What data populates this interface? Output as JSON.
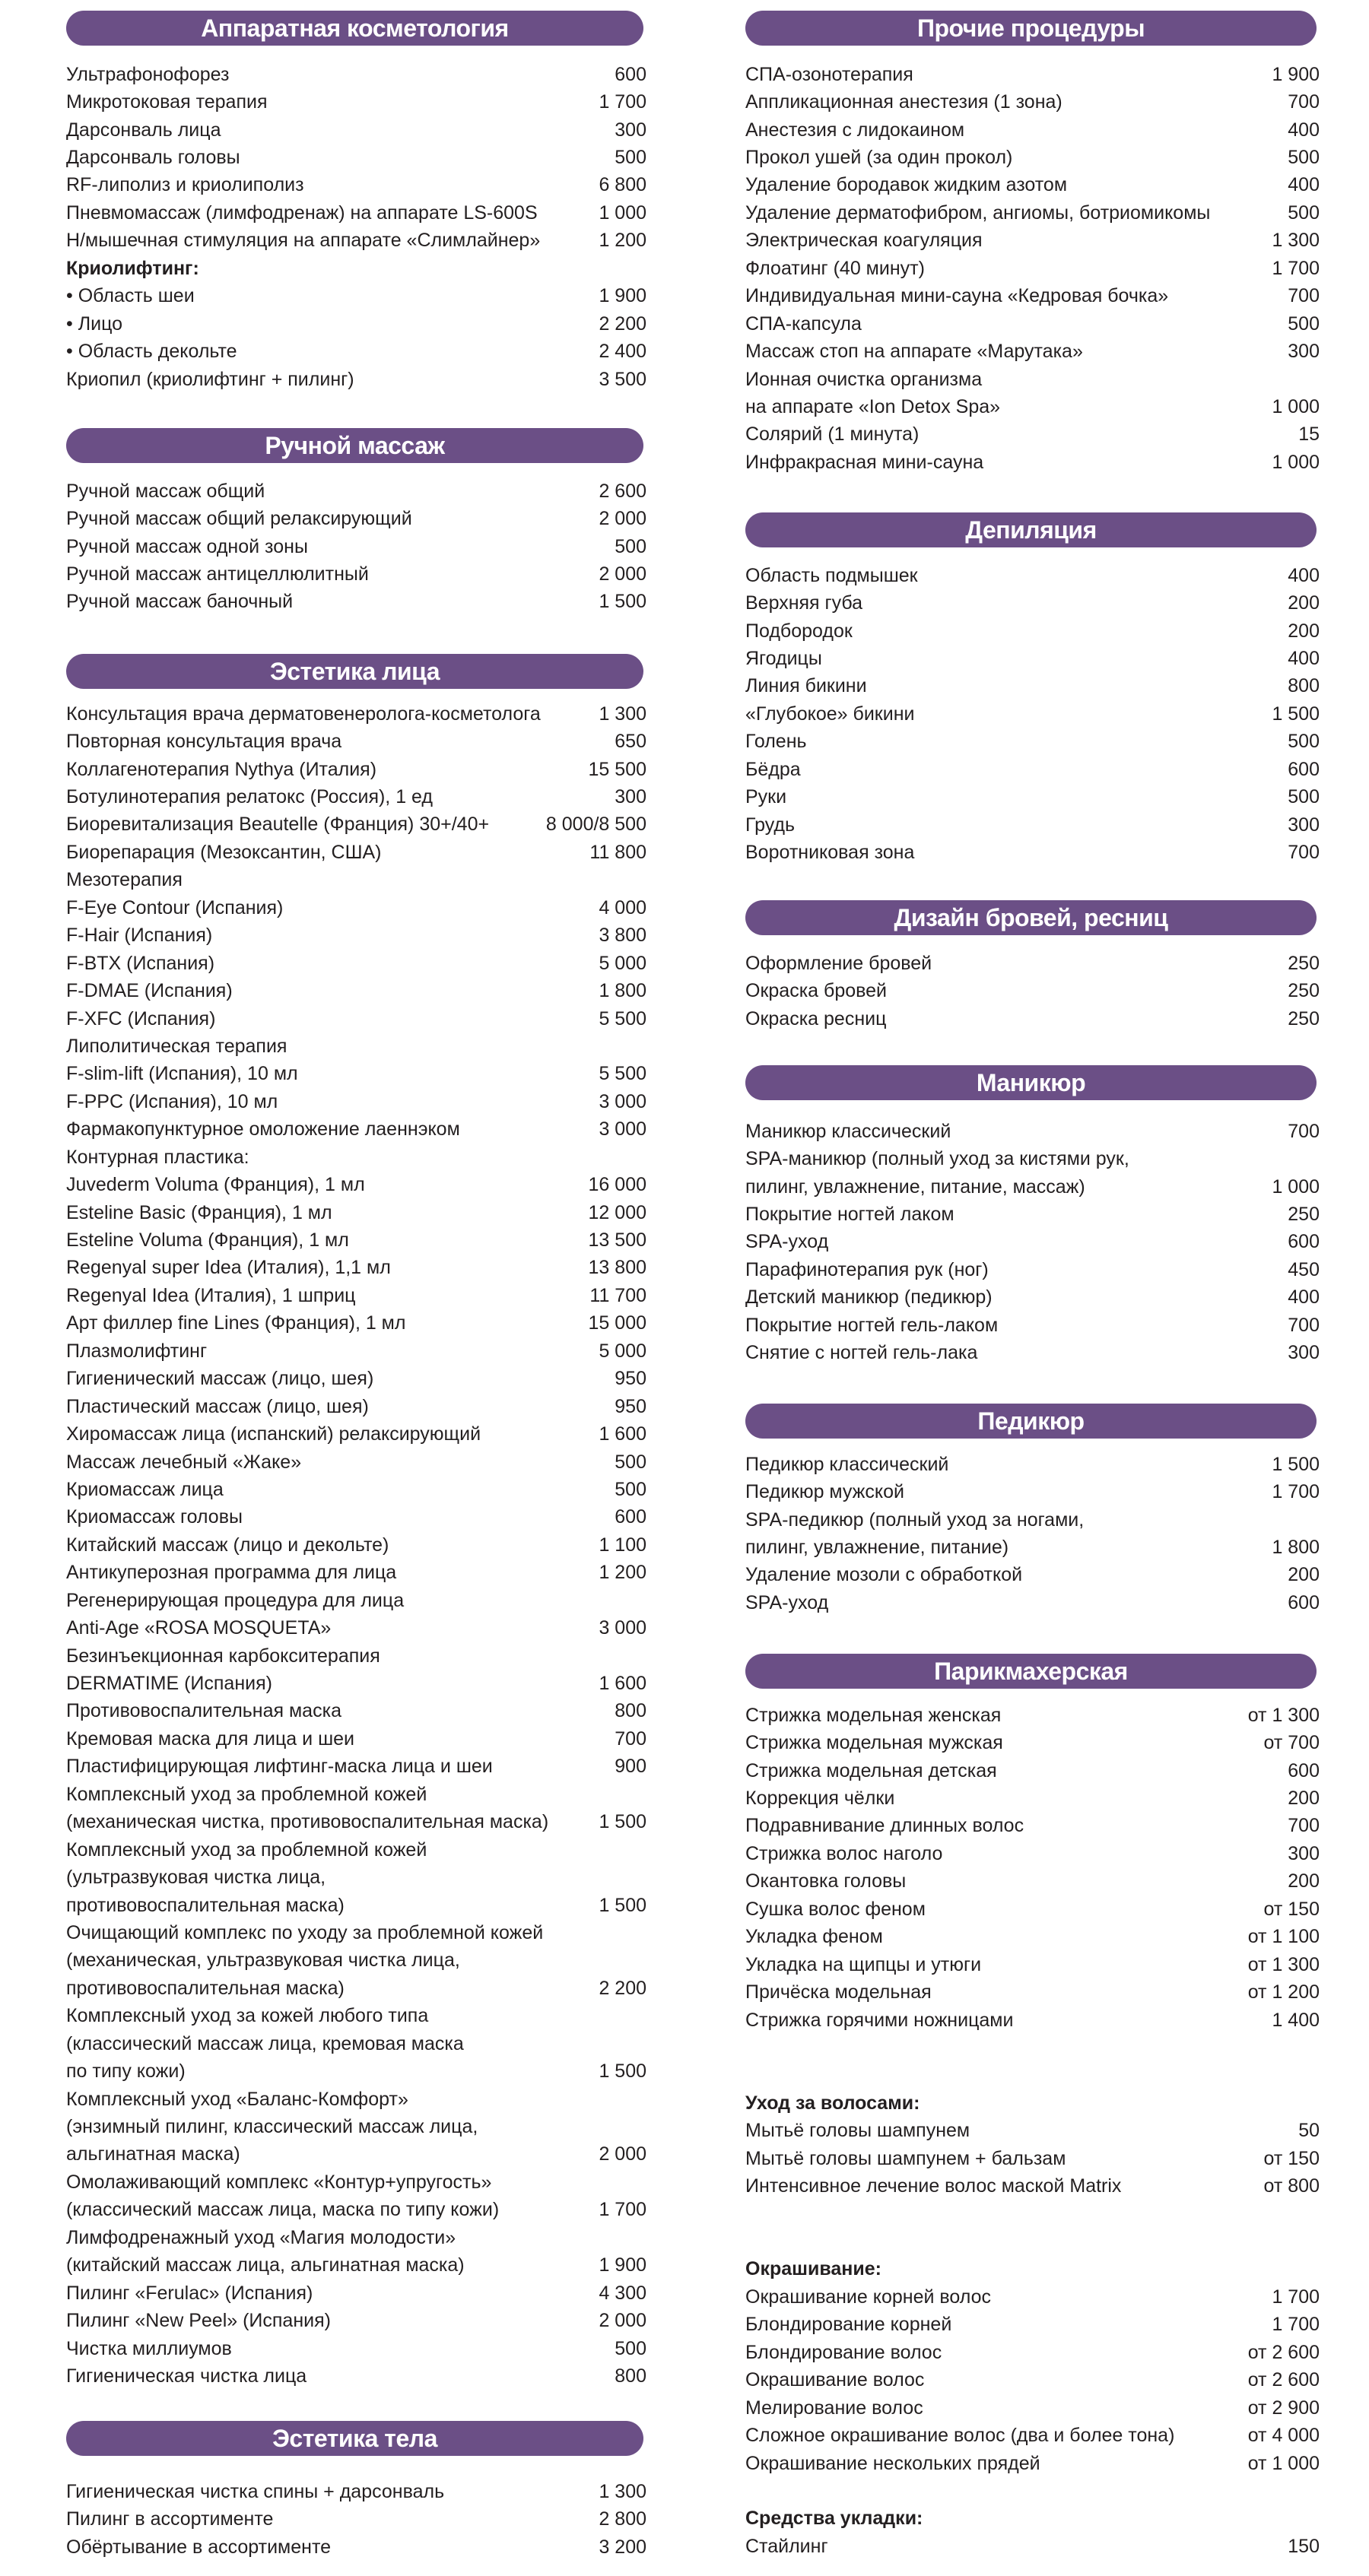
{
  "colors": {
    "header_bg": "#6b4f86",
    "header_text": "#ffffff",
    "text": "#231f20"
  },
  "sections": [
    {
      "id": "apparatus",
      "title": "Аппаратная косметология",
      "rows": [
        [
          "Ультрафонофорез",
          "600"
        ],
        [
          "Микротоковая терапия",
          "1 700"
        ],
        [
          "Дарсонваль лица",
          "300"
        ],
        [
          "Дарсонваль головы",
          "500"
        ],
        [
          "RF-липолиз и криолиполиз",
          "6 800"
        ],
        [
          "Пневмомассаж (лимфодренаж) на аппарате LS-600S",
          "1 000"
        ],
        [
          "Н/мышечная стимуляция на аппарате «Слимлайнер»",
          "1 200"
        ],
        [
          "Криолифтинг:",
          "",
          true
        ],
        [
          "• Область шеи",
          "1 900"
        ],
        [
          "• Лицо",
          "2 200"
        ],
        [
          "• Область декольте",
          "2 400"
        ],
        [
          "Криопил (криолифтинг + пилинг)",
          "3 500"
        ]
      ]
    },
    {
      "id": "manual-massage",
      "title": "Ручной массаж",
      "rows": [
        [
          "Ручной массаж общий",
          "2 600"
        ],
        [
          "Ручной массаж общий релаксирующий",
          "2 000"
        ],
        [
          "Ручной массаж одной зоны",
          "500"
        ],
        [
          "Ручной массаж антицеллюлитный",
          "2 000"
        ],
        [
          "Ручной массаж баночный",
          "1 500"
        ]
      ]
    },
    {
      "id": "face",
      "title": "Эстетика лица",
      "rows": [
        [
          "Консультация врача дерматовенеролога-косметолога",
          "1 300"
        ],
        [
          "Повторная консультация врача",
          "650"
        ],
        [
          "Коллагенотерапия Nythya (Италия)",
          "15 500"
        ],
        [
          "Ботулинотерапия релатокс (Россия), 1 ед",
          "300"
        ],
        [
          "Биоревитализация Beautelle (Франция) 30+/40+",
          "8 000/8 500"
        ],
        [
          "Биорепарация (Мезоксантин, США)",
          "11 800"
        ],
        [
          "Мезотерапия",
          ""
        ],
        [
          "F-Eye Contour (Испания)",
          "4 000"
        ],
        [
          "F-Hair (Испания)",
          "3 800"
        ],
        [
          "F-BTX (Испания)",
          "5 000"
        ],
        [
          "F-DMAE (Испания)",
          "1 800"
        ],
        [
          "F-XFC (Испания)",
          "5 500"
        ],
        [
          "Липолитическая терапия",
          ""
        ],
        [
          "F-slim-lift (Испания), 10 мл",
          "5 500"
        ],
        [
          "F-PPC (Испания), 10 мл",
          "3 000"
        ],
        [
          "Фармакопунктурное омоложение лаеннэком",
          "3 000"
        ],
        [
          "Контурная пластика:",
          ""
        ],
        [
          "Juvederm Voluma (Франция), 1 мл",
          "16 000"
        ],
        [
          "Esteline Basic (Франция), 1 мл",
          "12 000"
        ],
        [
          "Esteline Voluma (Франция), 1 мл",
          "13 500"
        ],
        [
          "Regenyal super Idea (Италия), 1,1 мл",
          "13 800"
        ],
        [
          "Regenyal Idea (Италия), 1 шприц",
          "11 700"
        ],
        [
          "Арт филлер fine Lines (Франция), 1 мл",
          "15 000"
        ],
        [
          "Плазмолифтинг",
          "5 000"
        ],
        [
          "Гигиенический массаж (лицо, шея)",
          "950"
        ],
        [
          "Пластический массаж (лицо, шея)",
          "950"
        ],
        [
          "Хиромассаж лица (испанский) релаксирующий",
          "1 600"
        ],
        [
          "Массаж лечебный «Жаке»",
          "500"
        ],
        [
          "Криомассаж лица",
          "500"
        ],
        [
          "Криомассаж головы",
          "600"
        ],
        [
          "Китайский массаж (лицо и декольте)",
          "1 100"
        ],
        [
          "Антикуперозная программа для лица",
          "1 200"
        ],
        [
          "Регенерирующая процедура для лица",
          ""
        ],
        [
          "Anti-Age «ROSA MOSQUETA»",
          "3 000"
        ],
        [
          "Безинъекционная карбокситерапия",
          ""
        ],
        [
          "DERMATIME (Испания)",
          "1 600"
        ],
        [
          "Противовоспалительная маска",
          "800"
        ],
        [
          "Кремовая маска для лица и шеи",
          "700"
        ],
        [
          "Пластифицирующая лифтинг-маска лица и шеи",
          "900"
        ],
        [
          "Комплексный уход за проблемной кожей",
          ""
        ],
        [
          "(механическая чистка, противовоспалительная маска)",
          "1 500"
        ],
        [
          "Комплексный уход за проблемной кожей",
          ""
        ],
        [
          "(ультразвуковая чистка лица,",
          ""
        ],
        [
          "противовоспалительная маска)",
          "1 500"
        ],
        [
          "Очищающий комплекс по уходу за проблемной кожей",
          ""
        ],
        [
          "(механическая, ультразвуковая чистка лица,",
          ""
        ],
        [
          "противовоспалительная маска)",
          "2 200"
        ],
        [
          "Комплексный уход за кожей любого типа",
          ""
        ],
        [
          "(классический массаж лица, кремовая маска",
          ""
        ],
        [
          "по типу кожи)",
          "1 500"
        ],
        [
          "Комплексный уход «Баланс-Комфорт»",
          ""
        ],
        [
          "(энзимный пилинг, классический массаж лица,",
          ""
        ],
        [
          "альгинатная маска)",
          "2 000"
        ],
        [
          "Омолаживающий комплекс «Контур+упругость»",
          ""
        ],
        [
          "(классический массаж лица, маска по типу кожи)",
          "1 700"
        ],
        [
          "Лимфодренажный уход «Магия молодости»",
          ""
        ],
        [
          "(китайский массаж лица, альгинатная маска)",
          "1 900"
        ],
        [
          "Пилинг «Ferulac» (Испания)",
          "4 300"
        ],
        [
          "Пилинг «New Peel» (Испания)",
          "2 000"
        ],
        [
          "Чистка миллиумов",
          "500"
        ],
        [
          "Гигиеническая чистка лица",
          "800"
        ]
      ]
    },
    {
      "id": "body",
      "title": "Эстетика тела",
      "rows": [
        [
          "Гигиеническая чистка спины + дарсонваль",
          "1 300"
        ],
        [
          "Пилинг в ассортименте",
          "2 800"
        ],
        [
          "Обёртывание в ассортименте",
          "3 200"
        ]
      ]
    },
    {
      "id": "other",
      "title": "Прочие процедуры",
      "rows": [
        [
          "СПА-озонотерапия",
          "1 900"
        ],
        [
          "Аппликационная анестезия (1 зона)",
          "700"
        ],
        [
          "Анестезия с лидокаином",
          "400"
        ],
        [
          "Прокол ушей (за один прокол)",
          "500"
        ],
        [
          "Удаление бородавок жидким азотом",
          "400"
        ],
        [
          "Удаление дерматофибром, ангиомы, ботриомикомы",
          "500"
        ],
        [
          "Электрическая коагуляция",
          "1 300"
        ],
        [
          "Флоатинг (40 минут)",
          "1 700"
        ],
        [
          "Индивидуальная мини-сауна «Кедровая бочка»",
          "700"
        ],
        [
          "СПА-капсула",
          "500"
        ],
        [
          "Массаж стоп на аппарате «Марутака»",
          "300"
        ],
        [
          "Ионная очистка организма",
          ""
        ],
        [
          "на аппарате «Ion Detox Spa»",
          "1 000"
        ],
        [
          "Солярий (1 минута)",
          "15"
        ],
        [
          "Инфракрасная мини-сауна",
          "1 000"
        ]
      ]
    },
    {
      "id": "depilation",
      "title": "Депиляция",
      "rows": [
        [
          "Область подмышек",
          "400"
        ],
        [
          "Верхняя губа",
          "200"
        ],
        [
          "Подбородок",
          "200"
        ],
        [
          "Ягодицы",
          "400"
        ],
        [
          "Линия бикини",
          "800"
        ],
        [
          "«Глубокое» бикини",
          "1 500"
        ],
        [
          "Голень",
          "500"
        ],
        [
          "Бёдра",
          "600"
        ],
        [
          "Руки",
          "500"
        ],
        [
          "Грудь",
          "300"
        ],
        [
          "Воротниковая зона",
          "700"
        ]
      ]
    },
    {
      "id": "brows",
      "title": "Дизайн бровей, ресниц",
      "rows": [
        [
          "Оформление бровей",
          "250"
        ],
        [
          "Окраска бровей",
          "250"
        ],
        [
          "Окраска ресниц",
          "250"
        ]
      ]
    },
    {
      "id": "manicure",
      "title": "Маникюр",
      "rows": [
        [
          "Маникюр классический",
          "700"
        ],
        [
          "SPA-маникюр (полный уход за кистями рук,",
          ""
        ],
        [
          "пилинг, увлажнение, питание, массаж)",
          "1 000"
        ],
        [
          "Покрытие ногтей лаком",
          "250"
        ],
        [
          "SPA-уход",
          "600"
        ],
        [
          "Парафинотерапия рук (ног)",
          "450"
        ],
        [
          "Детский маникюр (педикюр)",
          "400"
        ],
        [
          "Покрытие ногтей гель-лаком",
          "700"
        ],
        [
          "Снятие с ногтей гель-лака",
          "300"
        ]
      ]
    },
    {
      "id": "pedicure",
      "title": "Педикюр",
      "rows": [
        [
          "Педикюр классический",
          "1 500"
        ],
        [
          "Педикюр мужской",
          "1 700"
        ],
        [
          "SPA-педикюр (полный уход за ногами,",
          ""
        ],
        [
          "пилинг, увлажнение, питание)",
          "1 800"
        ],
        [
          "Удаление мозоли с обработкой",
          "200"
        ],
        [
          "SPA-уход",
          "600"
        ]
      ]
    },
    {
      "id": "hair",
      "title": "Парикмахерская",
      "rows": [
        [
          "Стрижка модельная женская",
          "от 1 300"
        ],
        [
          "Стрижка модельная мужская",
          "от 700"
        ],
        [
          "Стрижка модельная детская",
          "600"
        ],
        [
          "Коррекция чёлки",
          "200"
        ],
        [
          "Подравнивание длинных волос",
          "700"
        ],
        [
          "Стрижка волос наголо",
          "300"
        ],
        [
          "Окантовка головы",
          "200"
        ],
        [
          "Сушка волос феном",
          "от 150"
        ],
        [
          "Укладка феном",
          "от 1 100"
        ],
        [
          "Укладка на щипцы и утюги",
          "от 1 300"
        ],
        [
          "Причёска модельная",
          "от 1 200"
        ],
        [
          "Стрижка горячими ножницами",
          "1 400"
        ],
        [
          "",
          ""
        ],
        [
          "",
          ""
        ],
        [
          "Уход за волосами:",
          "",
          true
        ],
        [
          "Мытьё головы шампунем",
          "50"
        ],
        [
          "Мытьё головы шампунем + бальзам",
          "от 150"
        ],
        [
          "Интенсивное лечение волос маской Matrix",
          "от 800"
        ],
        [
          "",
          ""
        ],
        [
          "",
          ""
        ],
        [
          "Окрашивание:",
          "",
          true
        ],
        [
          "Окрашивание корней волос",
          "1 700"
        ],
        [
          "Блондирование корней",
          "1 700"
        ],
        [
          "Блондирование волос",
          "от 2 600"
        ],
        [
          "Окрашивание волос",
          "от 2 600"
        ],
        [
          "Мелирование волос",
          "от 2 900"
        ],
        [
          "Сложное окрашивание волос (два и более тона)",
          "от 4 000"
        ],
        [
          "Окрашивание нескольких прядей",
          "от 1 000"
        ],
        [
          "",
          ""
        ],
        [
          "Средства укладки:",
          "",
          true
        ],
        [
          "Стайлинг",
          "150"
        ]
      ]
    }
  ]
}
